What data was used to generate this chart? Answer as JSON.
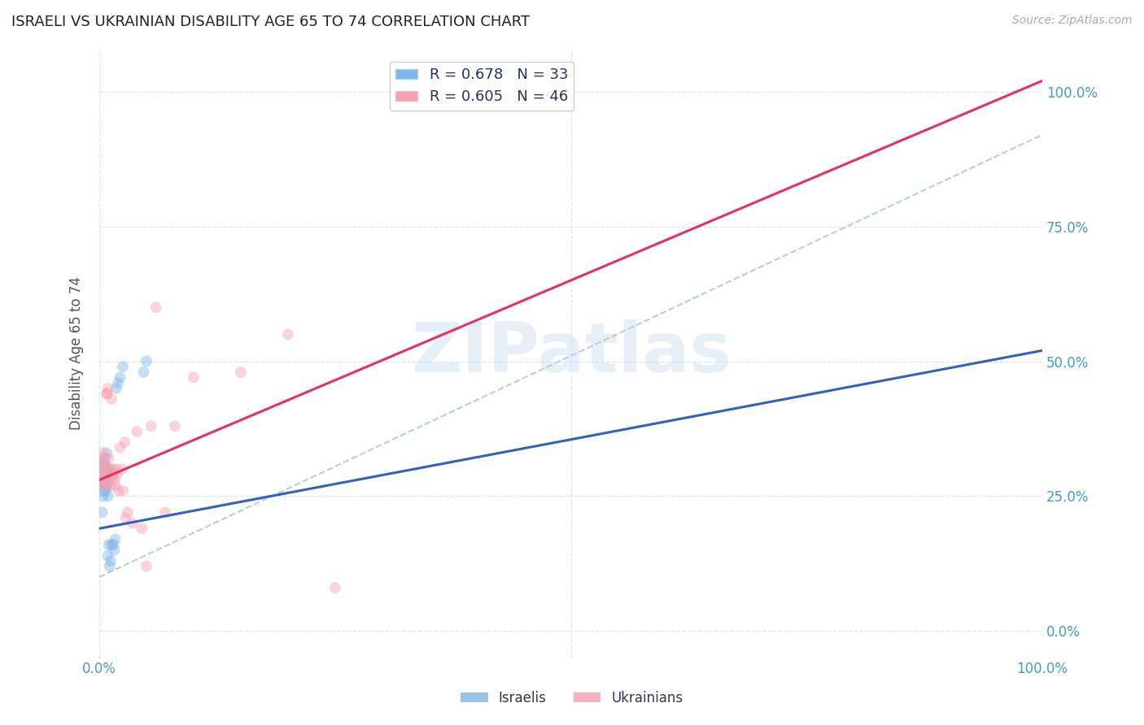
{
  "title": "ISRAELI VS UKRAINIAN DISABILITY AGE 65 TO 74 CORRELATION CHART",
  "source": "Source: ZipAtlas.com",
  "ylabel": "Disability Age 65 to 74",
  "watermark": "ZIPatlas",
  "israelis_R": 0.678,
  "israelis_N": 33,
  "ukrainians_R": 0.605,
  "ukrainians_N": 46,
  "israeli_color": "#7EB6E8",
  "ukrainian_color": "#F4A0B0",
  "israeli_line_color": "#3060C0",
  "ukrainian_line_color": "#E83060",
  "dashed_line_color": "#B8CCE0",
  "axis_label_color": "#4499CC",
  "israelis_x": [
    0.002,
    0.003,
    0.003,
    0.004,
    0.004,
    0.005,
    0.005,
    0.005,
    0.006,
    0.006,
    0.006,
    0.007,
    0.007,
    0.007,
    0.008,
    0.008,
    0.009,
    0.009,
    0.01,
    0.01,
    0.011,
    0.012,
    0.013,
    0.014,
    0.015,
    0.016,
    0.017,
    0.018,
    0.02,
    0.022,
    0.025,
    0.047,
    0.05
  ],
  "israelis_y": [
    0.27,
    0.22,
    0.29,
    0.25,
    0.31,
    0.28,
    0.26,
    0.31,
    0.3,
    0.27,
    0.32,
    0.28,
    0.3,
    0.26,
    0.27,
    0.33,
    0.14,
    0.25,
    0.16,
    0.3,
    0.12,
    0.13,
    0.16,
    0.29,
    0.16,
    0.15,
    0.17,
    0.45,
    0.46,
    0.47,
    0.49,
    0.48,
    0.5
  ],
  "ukrainians_x": [
    0.002,
    0.003,
    0.003,
    0.004,
    0.004,
    0.005,
    0.005,
    0.006,
    0.006,
    0.007,
    0.007,
    0.008,
    0.008,
    0.008,
    0.009,
    0.009,
    0.01,
    0.01,
    0.011,
    0.012,
    0.013,
    0.014,
    0.015,
    0.016,
    0.017,
    0.018,
    0.019,
    0.02,
    0.022,
    0.024,
    0.025,
    0.027,
    0.028,
    0.03,
    0.035,
    0.04,
    0.045,
    0.05,
    0.055,
    0.06,
    0.07,
    0.08,
    0.1,
    0.15,
    0.2,
    0.25
  ],
  "ukrainians_y": [
    0.3,
    0.32,
    0.28,
    0.27,
    0.33,
    0.29,
    0.3,
    0.28,
    0.31,
    0.27,
    0.29,
    0.44,
    0.44,
    0.3,
    0.28,
    0.45,
    0.29,
    0.32,
    0.3,
    0.27,
    0.43,
    0.29,
    0.3,
    0.28,
    0.27,
    0.3,
    0.29,
    0.26,
    0.34,
    0.3,
    0.26,
    0.35,
    0.21,
    0.22,
    0.2,
    0.37,
    0.19,
    0.12,
    0.38,
    0.6,
    0.22,
    0.38,
    0.47,
    0.48,
    0.55,
    0.08
  ],
  "israeli_line_x": [
    0.0,
    1.0
  ],
  "israeli_line_y": [
    0.19,
    0.52
  ],
  "ukrainian_line_x": [
    0.0,
    1.0
  ],
  "ukrainian_line_y": [
    0.28,
    1.02
  ],
  "xlim": [
    0,
    1.0
  ],
  "ylim": [
    -0.05,
    1.08
  ],
  "xticks": [
    0.0,
    1.0
  ],
  "yticks": [
    0.0,
    0.25,
    0.5,
    0.75,
    1.0
  ],
  "xticklabels_left": "0.0%",
  "xticklabels_right": "100.0%",
  "yticklabels": [
    "0.0%",
    "25.0%",
    "50.0%",
    "75.0%",
    "100.0%"
  ],
  "background_color": "#FFFFFF",
  "grid_color": "#D8E4F0",
  "marker_size": 100,
  "marker_alpha": 0.45
}
